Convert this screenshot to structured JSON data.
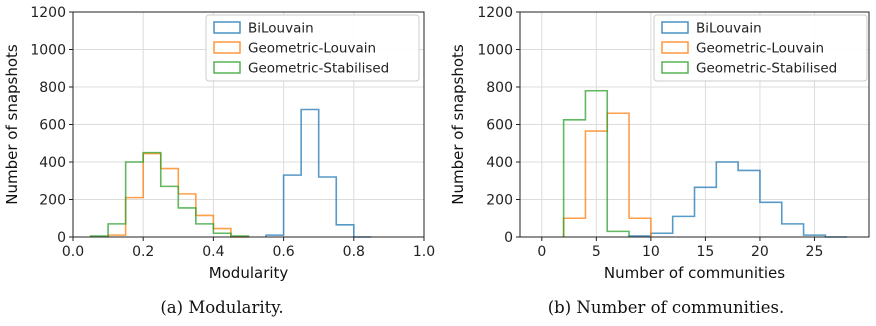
{
  "chart_data": [
    {
      "type": "histogram",
      "xlabel": "Modularity",
      "ylabel": "Number of snapshots",
      "xlim": [
        0.0,
        1.0
      ],
      "ylim": [
        0,
        1200
      ],
      "xticks": [
        0.0,
        0.2,
        0.4,
        0.6,
        0.8,
        1.0
      ],
      "xtick_labels": [
        "0.0",
        "0.2",
        "0.4",
        "0.6",
        "0.8",
        "1.0"
      ],
      "yticks": [
        0,
        200,
        400,
        600,
        800,
        1000,
        1200
      ],
      "ytick_labels": [
        "0",
        "200",
        "400",
        "600",
        "800",
        "1000",
        "1200"
      ],
      "grid": true,
      "legend_position": "top-right",
      "caption": "(a) Modularity.",
      "series": [
        {
          "name": "BiLouvain",
          "color": "#1f77b4",
          "edges": [
            0.55,
            0.6,
            0.65,
            0.7,
            0.75,
            0.8,
            0.85
          ],
          "values": [
            10,
            330,
            680,
            320,
            65,
            0
          ]
        },
        {
          "name": "Geometric-Louvain",
          "color": "#ff7f0e",
          "edges": [
            0.1,
            0.15,
            0.2,
            0.25,
            0.3,
            0.35,
            0.4,
            0.45,
            0.5
          ],
          "values": [
            10,
            210,
            445,
            365,
            230,
            115,
            45,
            0
          ]
        },
        {
          "name": "Geometric-Stabilised",
          "color": "#2ca02c",
          "edges": [
            0.05,
            0.1,
            0.15,
            0.2,
            0.25,
            0.3,
            0.35,
            0.4,
            0.45,
            0.5
          ],
          "values": [
            5,
            70,
            400,
            450,
            270,
            155,
            70,
            20,
            5
          ]
        }
      ]
    },
    {
      "type": "histogram",
      "xlabel": "Number of communities",
      "ylabel": "Number of snapshots",
      "xlim": [
        -2,
        30
      ],
      "ylim": [
        0,
        1200
      ],
      "xticks": [
        0,
        5,
        10,
        15,
        20,
        25
      ],
      "xtick_labels": [
        "0",
        "5",
        "10",
        "15",
        "20",
        "25"
      ],
      "yticks": [
        0,
        200,
        400,
        600,
        800,
        1000,
        1200
      ],
      "ytick_labels": [
        "0",
        "200",
        "400",
        "600",
        "800",
        "1000",
        "1200"
      ],
      "grid": true,
      "legend_position": "top-right",
      "caption": "(b) Number of communities.",
      "series": [
        {
          "name": "BiLouvain",
          "color": "#1f77b4",
          "edges": [
            8,
            10,
            12,
            14,
            16,
            18,
            20,
            22,
            24,
            26,
            28
          ],
          "values": [
            5,
            20,
            110,
            265,
            400,
            355,
            185,
            70,
            10,
            0
          ]
        },
        {
          "name": "Geometric-Louvain",
          "color": "#ff7f0e",
          "edges": [
            2,
            4,
            6,
            8,
            10
          ],
          "values": [
            100,
            565,
            660,
            100
          ]
        },
        {
          "name": "Geometric-Stabilised",
          "color": "#2ca02c",
          "edges": [
            2,
            4,
            6,
            8
          ],
          "values": [
            625,
            780,
            30
          ]
        }
      ]
    }
  ]
}
